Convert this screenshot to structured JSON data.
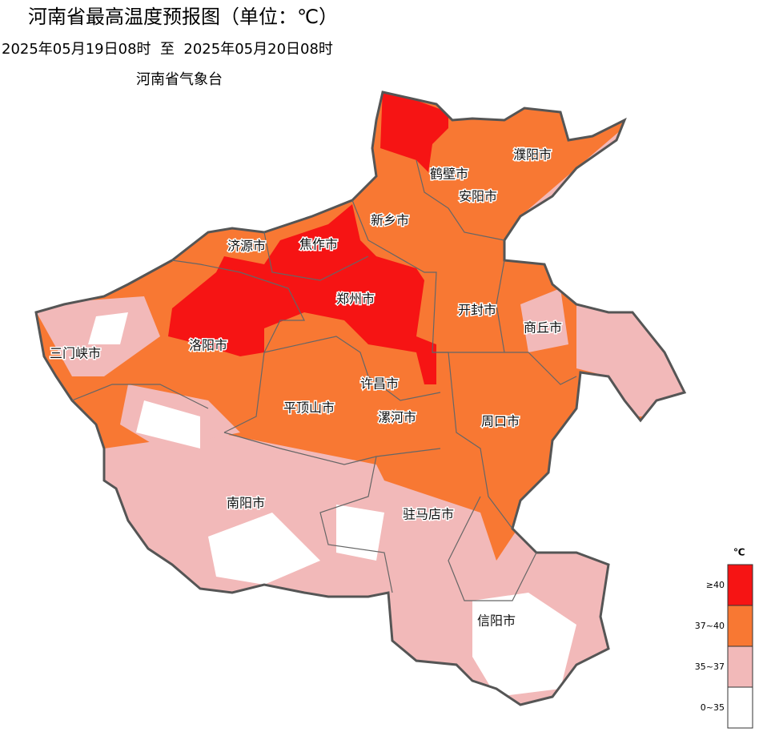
{
  "header": {
    "title": "河南省最高温度预报图（单位：℃）",
    "subtitle": "2025年05月19日08时  至  2025年05月20日08时",
    "agency": "河南省气象台"
  },
  "cities": [
    {
      "label": "濮阳市"
    },
    {
      "label": "鹤壁市"
    },
    {
      "label": "安阳市"
    },
    {
      "label": "新乡市"
    },
    {
      "label": "济源市"
    },
    {
      "label": "焦作市"
    },
    {
      "label": "郑州市"
    },
    {
      "label": "开封市"
    },
    {
      "label": "商丘市"
    },
    {
      "label": "三门峡市"
    },
    {
      "label": "洛阳市"
    },
    {
      "label": "许昌市"
    },
    {
      "label": "平顶山市"
    },
    {
      "label": "漯河市"
    },
    {
      "label": "周口市"
    },
    {
      "label": "南阳市"
    },
    {
      "label": "驻马店市"
    },
    {
      "label": "信阳市"
    }
  ],
  "legend": {
    "unit": "℃",
    "items": [
      {
        "label": "≥40",
        "color": "#f61414"
      },
      {
        "label": "37~40",
        "color": "#f87833"
      },
      {
        "label": "35~37",
        "color": "#f2b9b9"
      },
      {
        "label": "0~35",
        "color": "#ffffff"
      }
    ]
  }
}
